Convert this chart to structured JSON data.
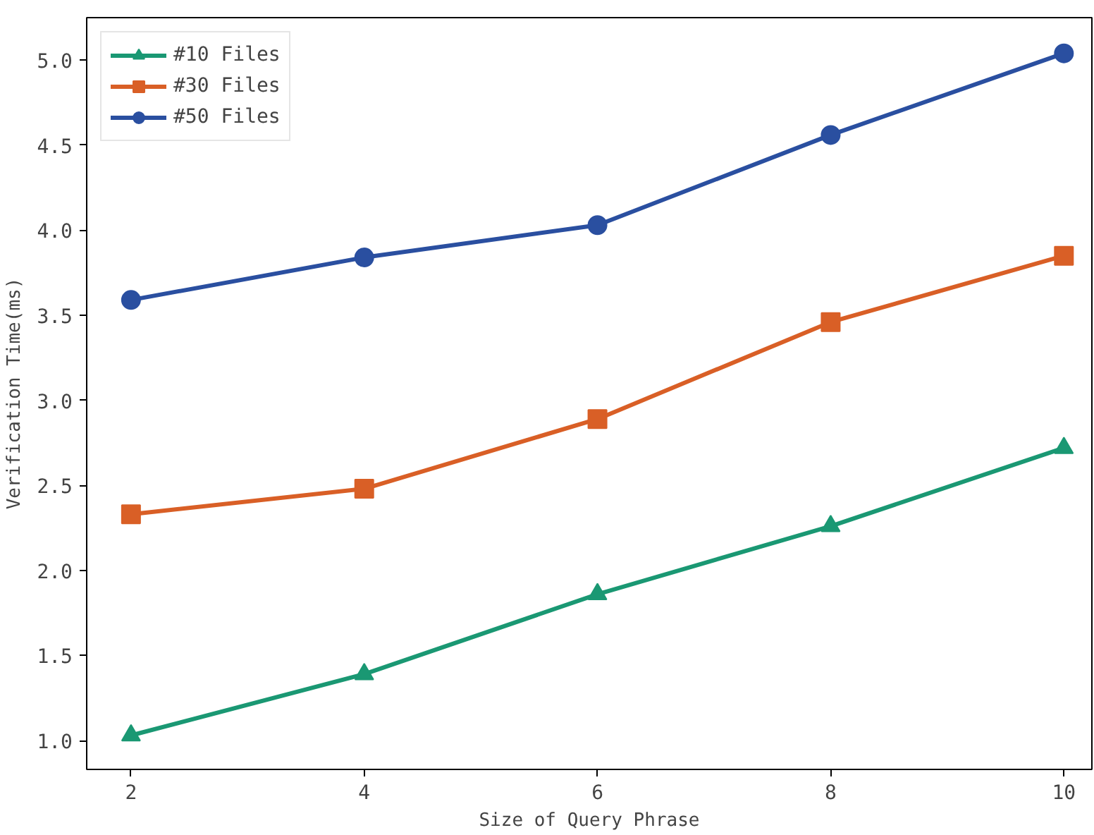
{
  "chart_data": {
    "type": "line",
    "xlabel": "Size of Query Phrase",
    "ylabel": "Verification Time(ms)",
    "x": [
      2,
      4,
      6,
      8,
      10
    ],
    "series": [
      {
        "name": "#10 Files",
        "color": "#1a9873",
        "marker": "triangle",
        "values": [
          1.03,
          1.39,
          1.86,
          2.26,
          2.72
        ]
      },
      {
        "name": "#30 Files",
        "color": "#d95f26",
        "marker": "square",
        "values": [
          2.33,
          2.48,
          2.89,
          3.46,
          3.85
        ]
      },
      {
        "name": "#50 Files",
        "color": "#2a4fa0",
        "marker": "circle",
        "values": [
          3.59,
          3.84,
          4.03,
          4.56,
          5.04
        ]
      }
    ],
    "xlim": [
      1.62,
      10.24
    ],
    "ylim": [
      0.83,
      5.25
    ],
    "xticks": [
      2,
      4,
      6,
      8,
      10
    ],
    "yticks": [
      {
        "value": 1.0,
        "label": "1.0"
      },
      {
        "value": 1.5,
        "label": "1.5"
      },
      {
        "value": 2.0,
        "label": "2.0"
      },
      {
        "value": 2.5,
        "label": "2.5"
      },
      {
        "value": 3.0,
        "label": "3.0"
      },
      {
        "value": 3.5,
        "label": "3.5"
      },
      {
        "value": 4.0,
        "label": "4.0"
      },
      {
        "value": 4.5,
        "label": "4.5"
      },
      {
        "value": 5.0,
        "label": "5.0"
      }
    ],
    "grid": false,
    "legend": "top left",
    "line_style": "solid"
  }
}
